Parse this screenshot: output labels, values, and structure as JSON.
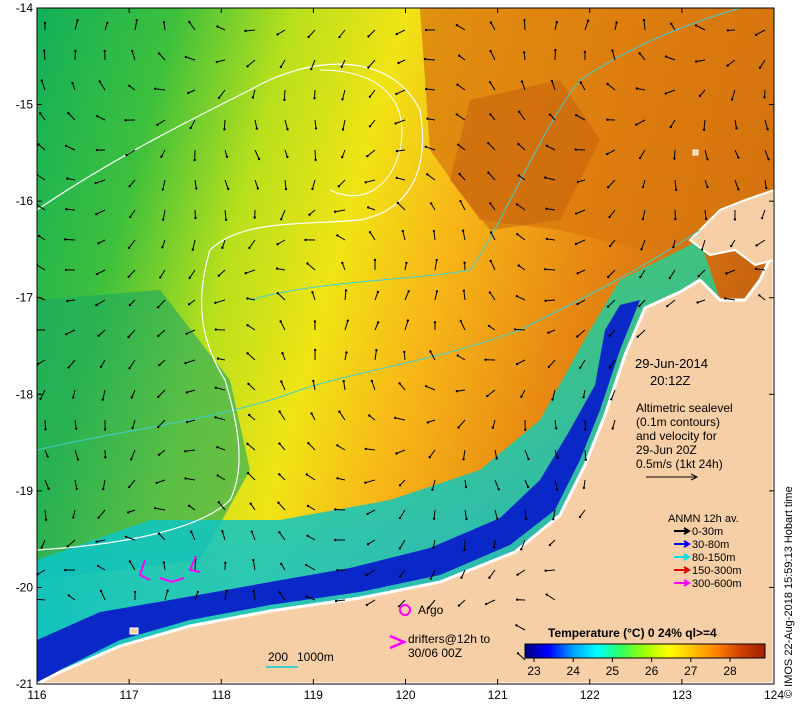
{
  "map": {
    "lon_range": [
      116,
      124
    ],
    "lat_range": [
      -21,
      -14
    ],
    "x_ticks": [
      "116",
      "117",
      "118",
      "119",
      "120",
      "121",
      "122",
      "123",
      "124"
    ],
    "y_ticks": [
      "-14",
      "-15",
      "-16",
      "-17",
      "-18",
      "-19",
      "-20",
      "-21"
    ]
  },
  "date_block": {
    "date": "29-Jun-2014",
    "time": "20:12Z"
  },
  "altimetry_note": {
    "line1": "Altimetric sealevel",
    "line2": "(0.1m contours)",
    "line3": "and velocity for",
    "line4": "29-Jun 20Z",
    "line5": "0.5m/s (1kt 24h)"
  },
  "anmn_legend": {
    "title": "ANMN 12h av.",
    "items": [
      {
        "label": "0-30m",
        "color": "#000000"
      },
      {
        "label": "30-80m",
        "color": "#0000ff"
      },
      {
        "label": "80-150m",
        "color": "#00e0e0"
      },
      {
        "label": "150-300m",
        "color": "#e00000"
      },
      {
        "label": "300-600m",
        "color": "#ff00ff"
      }
    ]
  },
  "argo_label": "Argo",
  "drifters": {
    "line1": "drifters@12h to",
    "line2": "30/06 00Z"
  },
  "depth_scale": {
    "label1": "200",
    "label2": "1000m"
  },
  "colorbar": {
    "title": "Temperature (°C) 0 24% ql>=4",
    "ticks": [
      "23",
      "24",
      "25",
      "26",
      "27",
      "28"
    ],
    "stops": [
      "#00007f",
      "#0000ff",
      "#00a0ff",
      "#00ffff",
      "#30ff60",
      "#a0ff00",
      "#ffff00",
      "#ffc000",
      "#ff8000",
      "#d04000",
      "#a02000"
    ]
  },
  "credit": "© IMOS 22-Aug-2018 15:59:13 Hobart time",
  "colors": {
    "land": "#f7cfa6",
    "coastline": "#ffffff",
    "shelf_contour": "#40d0d0",
    "sealevel_contour": "#ffffff",
    "argo": "#ff00ff"
  }
}
